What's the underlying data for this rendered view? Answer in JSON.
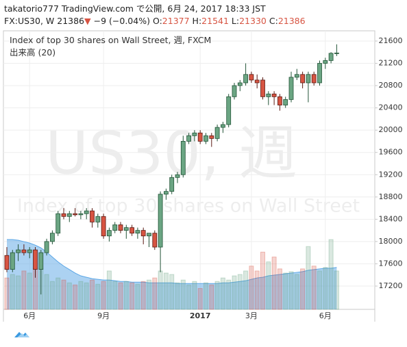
{
  "header": {
    "user": "takatorio777",
    "published": "TradingView.com で公開, 6月 24, 2017 18:33 JST"
  },
  "quote": {
    "symbol": "FX:US30, W",
    "last": 21386,
    "arrow": "▼",
    "change": "−9 (−0.04%)",
    "ohlc": [
      {
        "label": "O:",
        "value": 21377
      },
      {
        "label": "H:",
        "value": 21541
      },
      {
        "label": "L:",
        "value": 21330
      },
      {
        "label": "C:",
        "value": 21386
      }
    ]
  },
  "chart_data": {
    "type": "candlestick",
    "title": "Index of top 30 shares on Wall Street, 週, FXCM",
    "volume_label": "出来高 (20)",
    "watermark_symbol": "US30, 週",
    "watermark_description": "Index of top 30 shares on Wall Street",
    "up_color": "#6ba583",
    "down_color": "#d75442",
    "volume_ma_color": "#5aa6e6",
    "grid": true,
    "categories": [
      null,
      null,
      null,
      null,
      "6月",
      null,
      null,
      null,
      null,
      null,
      null,
      null,
      null,
      null,
      null,
      null,
      null,
      "9月",
      null,
      null,
      null,
      null,
      null,
      null,
      null,
      null,
      null,
      null,
      null,
      null,
      null,
      null,
      null,
      null,
      "2017",
      null,
      null,
      null,
      null,
      null,
      null,
      null,
      null,
      "3月",
      null,
      null,
      null,
      null,
      null,
      null,
      null,
      null,
      null,
      null,
      null,
      null,
      "6月",
      null,
      null
    ],
    "ohlc": [
      [
        17750,
        17900,
        17450,
        17500
      ],
      [
        17500,
        17850,
        17450,
        17800
      ],
      [
        17800,
        17950,
        17650,
        17850
      ],
      [
        17850,
        17950,
        17750,
        17800
      ],
      [
        17800,
        17900,
        17700,
        17850
      ],
      [
        17850,
        17900,
        17350,
        17500
      ],
      [
        17500,
        17850,
        17050,
        17800
      ],
      [
        17800,
        18050,
        17750,
        18000
      ],
      [
        18000,
        18200,
        17950,
        18150
      ],
      [
        18150,
        18550,
        18100,
        18500
      ],
      [
        18500,
        18600,
        18400,
        18450
      ],
      [
        18450,
        18550,
        18350,
        18500
      ],
      [
        18500,
        18600,
        18450,
        18480
      ],
      [
        18480,
        18550,
        18400,
        18500
      ],
      [
        18500,
        18600,
        18400,
        18550
      ],
      [
        18550,
        18600,
        18250,
        18350
      ],
      [
        18350,
        18500,
        18250,
        18450
      ],
      [
        18450,
        18500,
        18050,
        18100
      ],
      [
        18100,
        18250,
        18000,
        18200
      ],
      [
        18200,
        18350,
        18150,
        18300
      ],
      [
        18300,
        18350,
        18150,
        18200
      ],
      [
        18200,
        18300,
        18050,
        18250
      ],
      [
        18250,
        18300,
        18100,
        18150
      ],
      [
        18150,
        18250,
        18050,
        18200
      ],
      [
        18200,
        18250,
        17950,
        18100
      ],
      [
        18100,
        18150,
        17900,
        18150
      ],
      [
        18150,
        18200,
        17850,
        17900
      ],
      [
        17900,
        18900,
        17450,
        18850
      ],
      [
        18850,
        18950,
        18750,
        18900
      ],
      [
        18900,
        19200,
        18850,
        19150
      ],
      [
        19150,
        19250,
        19050,
        19200
      ],
      [
        19200,
        19900,
        19150,
        19800
      ],
      [
        19800,
        19950,
        19750,
        19900
      ],
      [
        19900,
        20000,
        19800,
        19950
      ],
      [
        19950,
        20000,
        19750,
        19800
      ],
      [
        19800,
        19950,
        19750,
        19900
      ],
      [
        19900,
        19950,
        19700,
        19850
      ],
      [
        19850,
        20100,
        19800,
        20050
      ],
      [
        20050,
        20150,
        19950,
        20100
      ],
      [
        20100,
        20650,
        20050,
        20600
      ],
      [
        20600,
        20850,
        20550,
        20800
      ],
      [
        20800,
        20900,
        20700,
        20850
      ],
      [
        20850,
        21200,
        20800,
        21000
      ],
      [
        21000,
        21050,
        20850,
        20900
      ],
      [
        20900,
        21000,
        20750,
        20850
      ],
      [
        20900,
        20950,
        20550,
        20600
      ],
      [
        20600,
        20700,
        20450,
        20650
      ],
      [
        20650,
        20700,
        20450,
        20600
      ],
      [
        20600,
        20650,
        20350,
        20450
      ],
      [
        20450,
        20600,
        20400,
        20550
      ],
      [
        20550,
        21050,
        20500,
        20950
      ],
      [
        20950,
        21100,
        20900,
        21000
      ],
      [
        21000,
        21050,
        20750,
        20850
      ],
      [
        20850,
        21050,
        20500,
        21000
      ],
      [
        21000,
        21050,
        20800,
        20850
      ],
      [
        20850,
        21250,
        20800,
        21200
      ],
      [
        21200,
        21300,
        21100,
        21250
      ],
      [
        21250,
        21400,
        21200,
        21380
      ],
      [
        21377,
        21541,
        21330,
        21386
      ]
    ],
    "volume": [
      45,
      50,
      48,
      55,
      52,
      60,
      58,
      50,
      40,
      45,
      42,
      38,
      35,
      40,
      38,
      42,
      36,
      40,
      55,
      40,
      38,
      40,
      38,
      36,
      40,
      42,
      45,
      55,
      52,
      50,
      38,
      42,
      35,
      40,
      30,
      38,
      35,
      40,
      45,
      42,
      48,
      50,
      55,
      62,
      55,
      82,
      68,
      75,
      58,
      52,
      54,
      50,
      58,
      90,
      62,
      55,
      60,
      100,
      55
    ],
    "volume_ma": [
      100,
      100,
      99,
      97,
      95,
      92,
      88,
      82,
      75,
      68,
      62,
      57,
      52,
      48,
      46,
      44,
      43,
      42,
      42,
      41,
      40,
      40,
      39,
      39,
      39,
      38,
      38,
      38,
      38,
      38,
      37,
      37,
      37,
      37,
      37,
      37,
      37,
      37,
      38,
      38,
      39,
      40,
      41,
      43,
      45,
      46,
      48,
      49,
      50,
      51,
      52,
      53,
      54,
      56,
      57,
      58,
      59,
      59,
      60
    ],
    "ylim": [
      16782,
      21784
    ],
    "yticks": [
      17200,
      17600,
      18000,
      18400,
      18800,
      19200,
      19600,
      20000,
      20400,
      20800,
      21200,
      21600
    ],
    "y2lim": [
      0,
      100
    ]
  }
}
